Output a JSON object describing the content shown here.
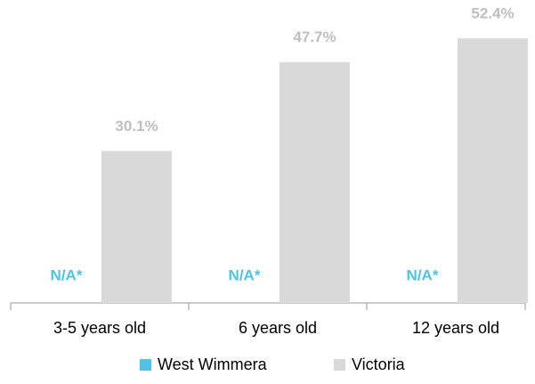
{
  "chart_data": {
    "type": "bar",
    "categories": [
      "3-5 years old",
      "6 years old",
      "12 years old"
    ],
    "series": [
      {
        "name": "West Wimmera",
        "color": "#4dc3e6",
        "values": [
          null,
          null,
          null
        ],
        "value_labels": [
          "N/A*",
          "N/A*",
          "N/A*"
        ]
      },
      {
        "name": "Victoria",
        "color": "#d9d9d9",
        "label_color": "#bfbfbf",
        "values": [
          30.1,
          47.7,
          52.4
        ],
        "value_labels": [
          "30.1%",
          "47.7%",
          "52.4%"
        ]
      }
    ],
    "ylim": [
      0,
      60
    ],
    "legend": "bottom"
  }
}
